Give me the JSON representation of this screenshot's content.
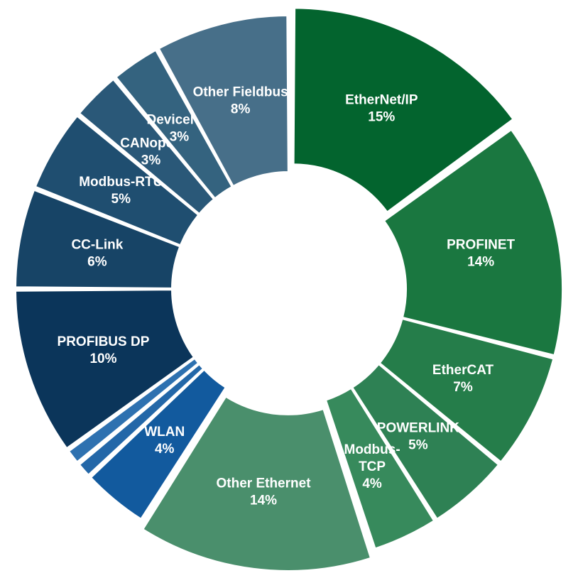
{
  "chart_data": {
    "type": "pie",
    "title": "",
    "series": [
      {
        "name": "EtherNet/IP",
        "value": 15,
        "label": "15%",
        "color": "#03642e"
      },
      {
        "name": "PROFINET",
        "value": 14,
        "label": "14%",
        "color": "#1a7740"
      },
      {
        "name": "EtherCAT",
        "value": 7,
        "label": "7%",
        "color": "#257d4a"
      },
      {
        "name": "POWERLINK",
        "value": 5,
        "label": "5%",
        "color": "#2e8154"
      },
      {
        "name": "Modbus-\nTCP",
        "value": 4,
        "label": "4%",
        "color": "#378a5c"
      },
      {
        "name": "Other Ethernet",
        "value": 14,
        "label": "14%",
        "color": "#4a8f6c"
      },
      {
        "name": "WLAN",
        "value": 4,
        "label": "4%",
        "color": "#125a9e"
      },
      {
        "name": "",
        "value": 1,
        "label": "",
        "color": "#2367a8"
      },
      {
        "name": "",
        "value": 1,
        "label": "",
        "color": "#2e71b0"
      },
      {
        "name": "PROFIBUS DP",
        "value": 10,
        "label": "10%",
        "color": "#0b355a"
      },
      {
        "name": "CC-Link",
        "value": 6,
        "label": "6%",
        "color": "#174466"
      },
      {
        "name": "Modbus-RTU",
        "value": 5,
        "label": "5%",
        "color": "#1f4e70"
      },
      {
        "name": "CANopen",
        "value": 3,
        "label": "3%",
        "color": "#2a5878"
      },
      {
        "name": "DeviceNet",
        "value": 3,
        "label": "3%",
        "color": "#34637f"
      },
      {
        "name": "Other Fieldbus",
        "value": 8,
        "label": "8%",
        "color": "#476f89"
      }
    ]
  }
}
